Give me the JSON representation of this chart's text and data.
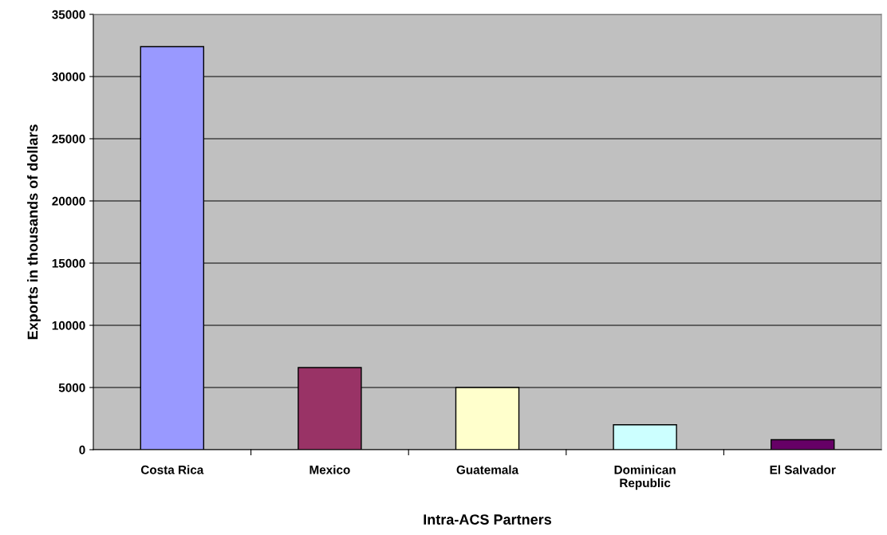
{
  "chart_data": {
    "type": "bar",
    "xlabel": "Intra-ACS Partners",
    "ylabel": "Exports in thousands of dollars",
    "categories": [
      "Costa Rica",
      "Mexico",
      "Guatemala",
      "Dominican\nRepublic",
      "El Salvador"
    ],
    "values": [
      32400,
      6600,
      5000,
      2000,
      800
    ],
    "colors": [
      "#9999ff",
      "#993366",
      "#ffffcc",
      "#ccffff",
      "#660066"
    ],
    "ylim": [
      0,
      35000
    ],
    "yticks": [
      0,
      5000,
      10000,
      15000,
      20000,
      25000,
      30000,
      35000
    ],
    "grid": "y",
    "legend": false
  }
}
